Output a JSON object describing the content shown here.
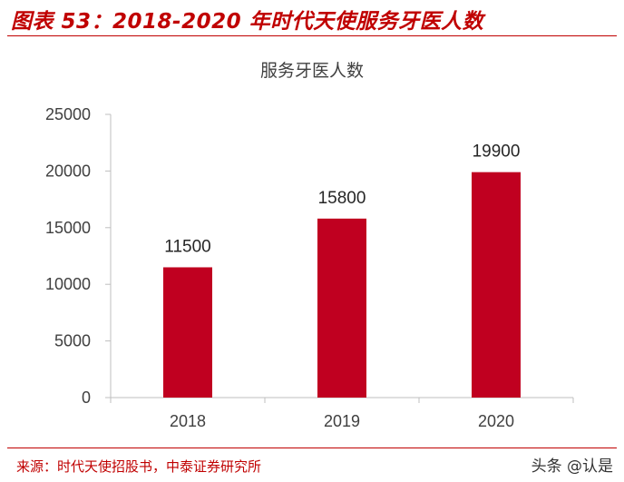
{
  "header": {
    "figure_title": "图表 53：2018-2020 年时代天使服务牙医人数"
  },
  "footer": {
    "source": "来源：时代天使招股书，中泰证券研究所",
    "watermark": "头条 @认是"
  },
  "colors": {
    "accent": "#c00000",
    "bar": "#c00020",
    "text": "#404040",
    "axis": "#bfbfbf"
  },
  "chart_data": {
    "type": "bar",
    "title": "服务牙医人数",
    "categories": [
      "2018",
      "2019",
      "2020"
    ],
    "values": [
      11500,
      15800,
      19900
    ],
    "ylim": [
      0,
      25000
    ],
    "yticks": [
      0,
      5000,
      10000,
      15000,
      20000,
      25000
    ],
    "data_labels": true,
    "grid": false,
    "legend": "none"
  }
}
